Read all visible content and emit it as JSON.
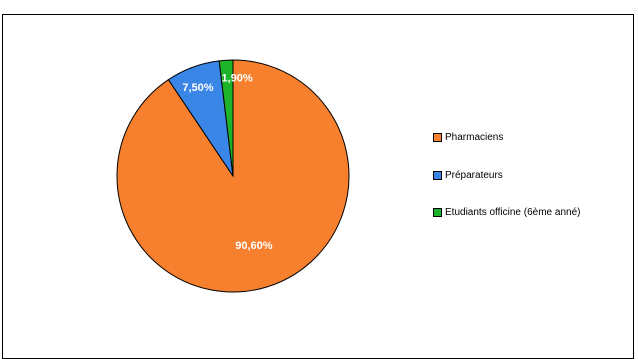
{
  "chart_data": {
    "type": "pie",
    "categories": [
      "Pharmaciens",
      "Préparateurs",
      "Etudiants officine (6ème anné)"
    ],
    "values": [
      90.6,
      7.5,
      1.9
    ],
    "value_labels": [
      "90,60%",
      "7,50%",
      "1,90%"
    ],
    "colors": [
      "#F6802E",
      "#3A86E6",
      "#1DB32A"
    ],
    "legend_position": "right"
  }
}
